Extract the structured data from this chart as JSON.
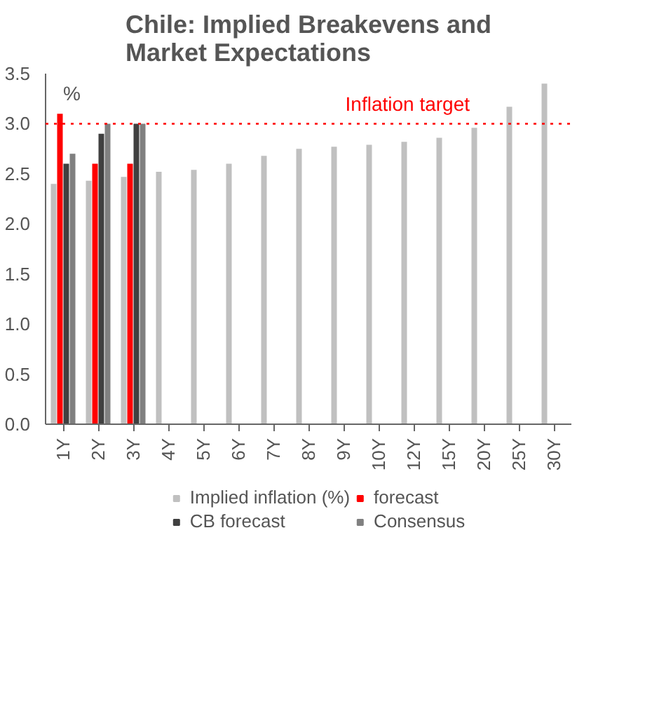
{
  "chart_data": {
    "type": "bar",
    "title": "Chile: Implied Breakevens and Market Expectations",
    "categories": [
      "1Y",
      "2Y",
      "3Y",
      "4Y",
      "5Y",
      "6Y",
      "7Y",
      "8Y",
      "9Y",
      "10Y",
      "12Y",
      "15Y",
      "20Y",
      "25Y",
      "30Y"
    ],
    "series": [
      {
        "name": "Implied inflation (%)",
        "color": "#c0c0c0",
        "values": [
          2.4,
          2.43,
          2.47,
          2.52,
          2.54,
          2.6,
          2.68,
          2.75,
          2.77,
          2.79,
          2.82,
          2.86,
          2.96,
          3.17,
          3.4
        ]
      },
      {
        "name": "forecast",
        "color": "#ff0000",
        "values": [
          3.1,
          2.6,
          2.6,
          null,
          null,
          null,
          null,
          null,
          null,
          null,
          null,
          null,
          null,
          null,
          null
        ]
      },
      {
        "name": "CB forecast",
        "color": "#404040",
        "values": [
          2.6,
          2.9,
          3.0,
          null,
          null,
          null,
          null,
          null,
          null,
          null,
          null,
          null,
          null,
          null,
          null
        ]
      },
      {
        "name": "Consensus",
        "color": "#808080",
        "values": [
          2.7,
          3.0,
          3.0,
          null,
          null,
          null,
          null,
          null,
          null,
          null,
          null,
          null,
          null,
          null,
          null
        ]
      }
    ],
    "ylim": [
      0,
      3.5
    ],
    "yticks": [
      {
        "value": 0,
        "label": "0.0"
      },
      {
        "value": 0.5,
        "label": "0.5"
      },
      {
        "value": 1,
        "label": "1.0"
      },
      {
        "value": 1.5,
        "label": "1.5"
      },
      {
        "value": 2,
        "label": "2.0"
      },
      {
        "value": 2.5,
        "label": "2.5"
      },
      {
        "value": 3,
        "label": "3.0"
      },
      {
        "value": 3.5,
        "label": "3.5"
      }
    ],
    "ref_lines": [
      {
        "axis": "y",
        "value": 3.0,
        "label": "Inflation target",
        "color": "#ff0000",
        "line_style": "dotted"
      }
    ],
    "annotations": [
      "%"
    ],
    "grid": false,
    "legend": "bottom"
  }
}
